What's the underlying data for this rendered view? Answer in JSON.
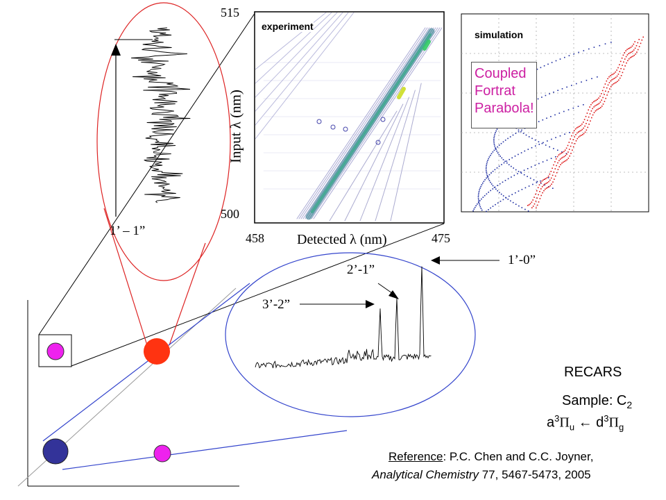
{
  "panels": {
    "experiment_label": "experiment",
    "simulation_label": "simulation",
    "input_axis_label": "Input λ (nm)",
    "input_min": "500",
    "input_max": "515",
    "detected_axis_label": "Detected λ (nm)",
    "detected_min": "458",
    "detected_max": "475"
  },
  "callout": {
    "line1": "Coupled",
    "line2": "Fortrat",
    "line3": "Parabola!"
  },
  "bands": {
    "left_label": "1’ – 1”",
    "b10": "1’-0”",
    "b21": "2’-1”",
    "b32": "3’-2”"
  },
  "info": {
    "method": "RECARS",
    "sample_prefix": "Sample: C",
    "sample_sub": "2",
    "transition": {
      "a": "a",
      "a_sup": "3",
      "pi1": "Π",
      "u": "u",
      "arrow": " ← ",
      "d": "d",
      "d_sup": "3",
      "pi2": "Π",
      "g": "g"
    },
    "reference": {
      "label": "Reference",
      "authors": ": P.C. Chen and C.C. Joyner,",
      "journal": "Analytical Chemistry",
      "citation": " 77, 5467-5473, 2005"
    }
  },
  "colors": {
    "magenta": "#ee22ee",
    "orange_red": "#ff3311",
    "navy": "#333399",
    "callout_text": "#cc1fa2",
    "ellipse_red": "#dd2222",
    "ellipse_blue": "#3344cc"
  }
}
